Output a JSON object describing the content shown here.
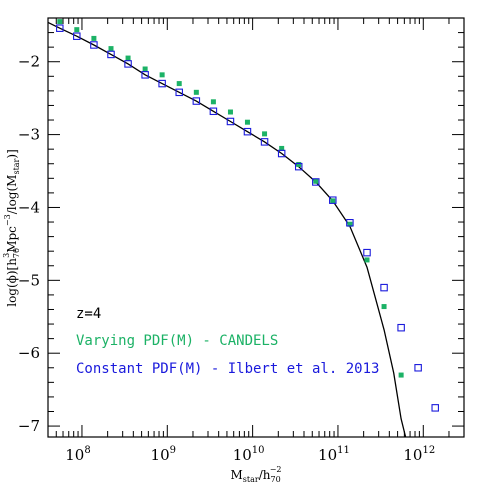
{
  "chart_data": {
    "type": "scatter",
    "xscale": "log",
    "xlim": [
      40000000,
      3000000000000
    ],
    "ylim": [
      -7.15,
      -1.4
    ],
    "x_ticks": [
      {
        "value": 100000000,
        "base": "10",
        "exp": "8"
      },
      {
        "value": 1000000000,
        "base": "10",
        "exp": "9"
      },
      {
        "value": 10000000000,
        "base": "10",
        "exp": "10"
      },
      {
        "value": 100000000000,
        "base": "10",
        "exp": "11"
      },
      {
        "value": 1000000000000,
        "base": "10",
        "exp": "12"
      }
    ],
    "y_ticks": [
      -2,
      -3,
      -4,
      -5,
      -6,
      -7
    ],
    "xlabel": {
      "main": "M",
      "sub": "star",
      "mid": "/h",
      "sub2": "70",
      "sup2": "−2"
    },
    "ylabel": {
      "pre": "log(ϕ)[h",
      "sub1": "70",
      "sup1": "3",
      "mid": "Mpc",
      "sup2": "−3",
      "post": "/log(M",
      "sub3": "star",
      "end": ")]"
    },
    "annotation": "z=4",
    "series": [
      {
        "name": "Varying PDF(M) - CANDELS",
        "color": "#1cb266",
        "marker": "filled-square",
        "x": [
          55000000,
          87000000,
          138000000,
          219000000,
          347000000,
          550000000,
          870000000,
          1380000000,
          2190000000,
          3470000000,
          5500000000,
          8700000000,
          13800000000,
          21900000000,
          34700000000,
          55000000000,
          87000000000,
          138000000000,
          219000000000,
          347000000000,
          550000000000
        ],
        "values": [
          -1.45,
          -1.56,
          -1.68,
          -1.82,
          -1.95,
          -2.1,
          -2.18,
          -2.3,
          -2.42,
          -2.55,
          -2.69,
          -2.83,
          -2.99,
          -3.19,
          -3.41,
          -3.64,
          -3.91,
          -4.23,
          -4.72,
          -5.36,
          -6.3
        ]
      },
      {
        "name": "Constant PDF(M) - Ilbert et al. 2013",
        "color": "#1a1adc",
        "marker": "open-square",
        "x": [
          55000000,
          87000000,
          138000000,
          219000000,
          347000000,
          550000000,
          870000000,
          1380000000,
          2190000000,
          3470000000,
          5500000000,
          8700000000,
          13800000000,
          21900000000,
          34700000000,
          55000000000,
          87000000000,
          138000000000,
          219000000000,
          347000000000,
          550000000000,
          870000000000,
          1380000000000
        ],
        "values": [
          -1.54,
          -1.65,
          -1.77,
          -1.9,
          -2.03,
          -2.18,
          -2.3,
          -2.42,
          -2.54,
          -2.68,
          -2.82,
          -2.96,
          -3.1,
          -3.26,
          -3.44,
          -3.65,
          -3.9,
          -4.21,
          -4.62,
          -5.1,
          -5.65,
          -6.2,
          -6.75
        ]
      }
    ],
    "fit_curve": {
      "name": "",
      "color": "#000000",
      "x": [
        40000000,
        55000000,
        87000000,
        138000000,
        219000000,
        347000000,
        550000000,
        870000000,
        1380000000,
        2190000000,
        3470000000,
        5500000000,
        8700000000,
        13800000000,
        21900000000,
        34700000000,
        55000000000,
        87000000000,
        138000000000,
        219000000000,
        347000000000,
        450000000000,
        550000000000,
        620000000000
      ],
      "values": [
        -1.46,
        -1.54,
        -1.65,
        -1.77,
        -1.9,
        -2.03,
        -2.18,
        -2.3,
        -2.42,
        -2.54,
        -2.68,
        -2.82,
        -2.96,
        -3.1,
        -3.26,
        -3.44,
        -3.65,
        -3.91,
        -4.26,
        -4.82,
        -5.68,
        -6.27,
        -6.9,
        -7.15
      ]
    }
  }
}
